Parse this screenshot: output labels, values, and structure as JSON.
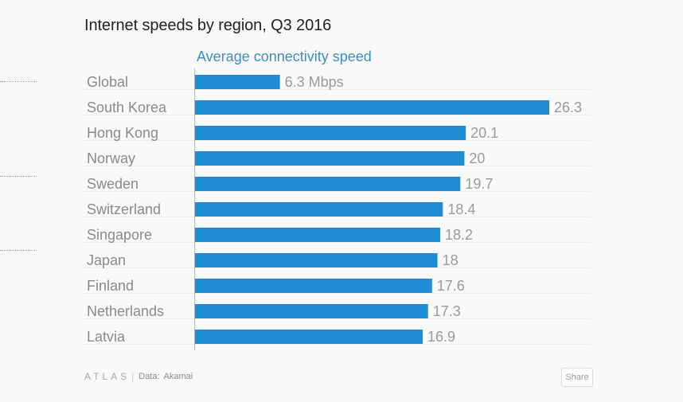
{
  "header": {
    "title": "Internet speeds by region, Q3 2016"
  },
  "chart_data": {
    "type": "bar",
    "orientation": "horizontal",
    "title": "Internet speeds by region, Q3 2016",
    "series": [
      {
        "name": "Average connectivity speed",
        "values": [
          6.3,
          26.3,
          20.1,
          20,
          19.7,
          18.4,
          18.2,
          18,
          17.6,
          17.3,
          16.9
        ]
      }
    ],
    "categories": [
      "Global",
      "South Korea",
      "Hong Kong",
      "Norway",
      "Sweden",
      "Switzerland",
      "Singapore",
      "Japan",
      "Finland",
      "Netherlands",
      "Latvia"
    ],
    "value_labels": [
      "6.3 Mbps",
      "26.3",
      "20.1",
      "20",
      "19.7",
      "18.4",
      "18.2",
      "18",
      "17.6",
      "17.3",
      "16.9"
    ],
    "xlim": [
      0,
      26.3
    ],
    "grid": true,
    "colors": {
      "bar": "#1f8dd6",
      "series_label": "#3d8ec4",
      "category_text": "#8a8a8a",
      "value_text": "#9a9a9a"
    }
  },
  "footer": {
    "brand": "ATLAS",
    "separator": "|",
    "source_label": "Data:",
    "source_value": "Akamai",
    "share_label": "Share"
  }
}
